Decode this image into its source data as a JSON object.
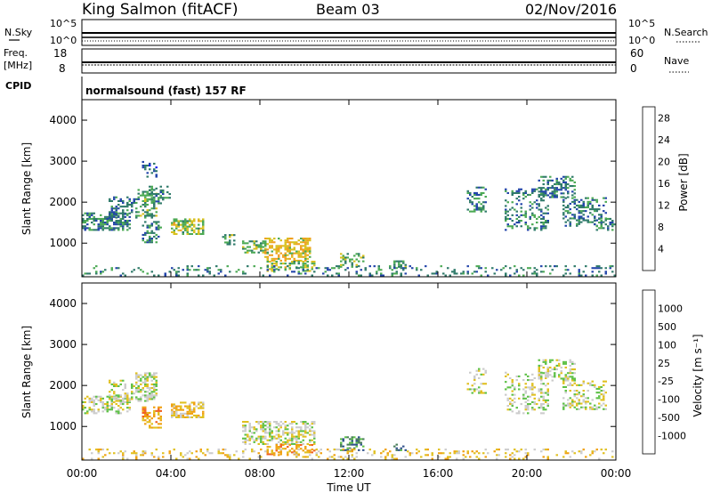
{
  "header": {
    "station": "King Salmon (fitACF)",
    "beam": "Beam 03",
    "date": "02/Nov/2016"
  },
  "strip_panels": {
    "nsky": {
      "label": "N.Sky",
      "left_ticks": [
        "10^5",
        "10^0"
      ],
      "right_ticks": [
        "10^5",
        "10^0"
      ],
      "right_label": "N.Search"
    },
    "freq": {
      "label": "Freq.",
      "unit": "[MHz]",
      "left_ticks": [
        "18",
        "8"
      ],
      "right_ticks": [
        "60",
        "0"
      ],
      "right_label": "Nave"
    },
    "cpid": {
      "label": "CPID",
      "text": "normalsound (fast) 157 RF"
    }
  },
  "colors": {
    "power_scale": [
      "#1020ee",
      "#2244aa",
      "#2f7a6a",
      "#4caa55",
      "#d8c020",
      "#f0a020",
      "#f06a1a",
      "#e83020",
      "#dd1010"
    ],
    "velocity_scale": [
      "#2a3fb8",
      "#34558e",
      "#4c7f5c",
      "#5fc148",
      "#cccccc",
      "#e0c020",
      "#f0a010",
      "#f06020",
      "#ee2a10",
      "#dd0000"
    ]
  },
  "chart_data": [
    {
      "type": "heatmap",
      "name": "power-panel",
      "xlabel": "",
      "ylabel": "Slant Range [km]",
      "xlim": [
        0,
        24
      ],
      "ylim": [
        180,
        4500
      ],
      "y_ticks": [
        1000,
        2000,
        3000,
        4000
      ],
      "colorbar": {
        "label": "Power [dB]",
        "ticks": [
          "4",
          "8",
          "12",
          "16",
          "20",
          "24",
          "28"
        ],
        "range": [
          0,
          30
        ]
      },
      "regions": [
        {
          "t": [
            0.0,
            2.2
          ],
          "r": [
            1300,
            1750
          ],
          "level": 7,
          "density": 0.55
        },
        {
          "t": [
            1.2,
            2.6
          ],
          "r": [
            1600,
            2100
          ],
          "level": 6,
          "density": 0.35
        },
        {
          "t": [
            2.4,
            3.4
          ],
          "r": [
            1600,
            2300
          ],
          "level": 9,
          "density": 0.5
        },
        {
          "t": [
            2.6,
            3.4
          ],
          "r": [
            2600,
            3000
          ],
          "level": 5,
          "density": 0.2
        },
        {
          "t": [
            3.0,
            4.0
          ],
          "r": [
            1950,
            2400
          ],
          "level": 7,
          "density": 0.3
        },
        {
          "t": [
            2.7,
            3.6
          ],
          "r": [
            1000,
            1500
          ],
          "level": 8,
          "density": 0.45
        },
        {
          "t": [
            4.0,
            5.4
          ],
          "r": [
            1200,
            1600
          ],
          "level": 12,
          "density": 0.6
        },
        {
          "t": [
            6.3,
            6.8
          ],
          "r": [
            950,
            1200
          ],
          "level": 9,
          "density": 0.5
        },
        {
          "t": [
            7.2,
            8.3
          ],
          "r": [
            750,
            1050
          ],
          "level": 10,
          "density": 0.5
        },
        {
          "t": [
            8.2,
            10.2
          ],
          "r": [
            550,
            1100
          ],
          "level": 15,
          "density": 0.55
        },
        {
          "t": [
            8.3,
            10.4
          ],
          "r": [
            300,
            560
          ],
          "level": 12,
          "density": 0.45
        },
        {
          "t": [
            11.6,
            12.6
          ],
          "r": [
            400,
            750
          ],
          "level": 10,
          "density": 0.45
        },
        {
          "t": [
            14.0,
            14.5
          ],
          "r": [
            400,
            580
          ],
          "level": 9,
          "density": 0.5
        },
        {
          "t": [
            17.3,
            18.2
          ],
          "r": [
            1750,
            2400
          ],
          "level": 7,
          "density": 0.25
        },
        {
          "t": [
            19.0,
            21.0
          ],
          "r": [
            1300,
            2300
          ],
          "level": 7,
          "density": 0.3
        },
        {
          "t": [
            20.5,
            22.2
          ],
          "r": [
            2100,
            2600
          ],
          "level": 7,
          "density": 0.45
        },
        {
          "t": [
            21.6,
            23.6
          ],
          "r": [
            1400,
            2100
          ],
          "level": 7,
          "density": 0.4
        },
        {
          "t": [
            23.0,
            24.0
          ],
          "r": [
            1300,
            1600
          ],
          "level": 7,
          "density": 0.5
        },
        {
          "t": [
            0.0,
            24.0
          ],
          "r": [
            190,
            450
          ],
          "level": 7,
          "density": 0.18
        }
      ]
    },
    {
      "type": "heatmap",
      "name": "velocity-panel",
      "xlabel": "Time UT",
      "ylabel": "Slant Range [km]",
      "xlim": [
        0,
        24
      ],
      "ylim": [
        180,
        4500
      ],
      "y_ticks": [
        1000,
        2000,
        3000,
        4000
      ],
      "x_ticks": [
        "00:00",
        "04:00",
        "08:00",
        "12:00",
        "16:00",
        "20:00",
        "00:00"
      ],
      "colorbar": {
        "label": "Velocity [m s⁻¹]",
        "ticks": [
          "1000",
          "500",
          "100",
          "25",
          "-25",
          "-100",
          "-500",
          "-1000"
        ]
      },
      "regions": [
        {
          "t": [
            0.0,
            2.2
          ],
          "r": [
            1300,
            1750
          ],
          "level": 4,
          "density": 0.55
        },
        {
          "t": [
            1.2,
            2.6
          ],
          "r": [
            1600,
            2100
          ],
          "level": 4,
          "density": 0.35
        },
        {
          "t": [
            2.4,
            3.4
          ],
          "r": [
            1600,
            2300
          ],
          "level": 4,
          "density": 0.5
        },
        {
          "t": [
            2.7,
            3.6
          ],
          "r": [
            950,
            1450
          ],
          "level": 6,
          "density": 0.45
        },
        {
          "t": [
            4.0,
            5.4
          ],
          "r": [
            1200,
            1600
          ],
          "level": 5,
          "density": 0.6
        },
        {
          "t": [
            7.2,
            10.4
          ],
          "r": [
            550,
            1100
          ],
          "level": 4,
          "density": 0.5
        },
        {
          "t": [
            8.3,
            10.4
          ],
          "r": [
            300,
            560
          ],
          "level": 6,
          "density": 0.4
        },
        {
          "t": [
            11.6,
            12.6
          ],
          "r": [
            400,
            750
          ],
          "level": 2,
          "density": 0.5
        },
        {
          "t": [
            14.0,
            14.5
          ],
          "r": [
            400,
            580
          ],
          "level": 2,
          "density": 0.5
        },
        {
          "t": [
            17.3,
            18.2
          ],
          "r": [
            1750,
            2400
          ],
          "level": 4,
          "density": 0.25
        },
        {
          "t": [
            19.0,
            21.0
          ],
          "r": [
            1300,
            2300
          ],
          "level": 4,
          "density": 0.3
        },
        {
          "t": [
            20.5,
            22.2
          ],
          "r": [
            2100,
            2600
          ],
          "level": 4,
          "density": 0.45
        },
        {
          "t": [
            21.6,
            23.6
          ],
          "r": [
            1400,
            2100
          ],
          "level": 4,
          "density": 0.4
        },
        {
          "t": [
            0.0,
            24.0
          ],
          "r": [
            190,
            450
          ],
          "level": 5,
          "density": 0.18
        }
      ]
    }
  ],
  "axis_labels": {
    "slant_range": "Slant Range [km]",
    "time_ut": "Time UT"
  }
}
